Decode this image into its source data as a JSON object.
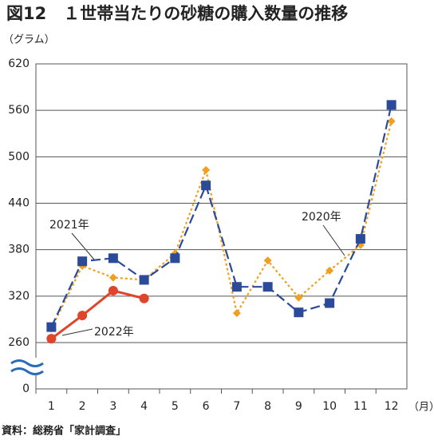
{
  "chart_data": {
    "type": "line",
    "title": "図12　１世帯当たりの砂糖の購入数量の推移",
    "y_label": "（グラム）",
    "x_label": "（月）",
    "source": "資料：総務省「家計調査」",
    "categories": [
      "1",
      "2",
      "3",
      "4",
      "5",
      "6",
      "7",
      "8",
      "9",
      "10",
      "11",
      "12"
    ],
    "series": [
      {
        "name": "2020年",
        "color": "#f0a020",
        "marker": "diamond",
        "dash": "dotted",
        "values": [
          278,
          359,
          344,
          341,
          375,
          483,
          298,
          366,
          318,
          353,
          386,
          546
        ]
      },
      {
        "name": "2021年",
        "color": "#2b4a9a",
        "marker": "square",
        "dash": "dashed",
        "values": [
          280,
          365,
          369,
          341,
          369,
          463,
          332,
          332,
          299,
          311,
          394,
          567
        ]
      },
      {
        "name": "2022年",
        "color": "#e0442a",
        "marker": "circle",
        "dash": "solid",
        "values": [
          265,
          295,
          327,
          317,
          null,
          null,
          null,
          null,
          null,
          null,
          null,
          null
        ]
      }
    ],
    "ylim": [
      260,
      620
    ],
    "yticks": [
      0,
      260,
      320,
      380,
      440,
      500,
      560,
      620
    ],
    "axis_break": true,
    "grid": true
  }
}
